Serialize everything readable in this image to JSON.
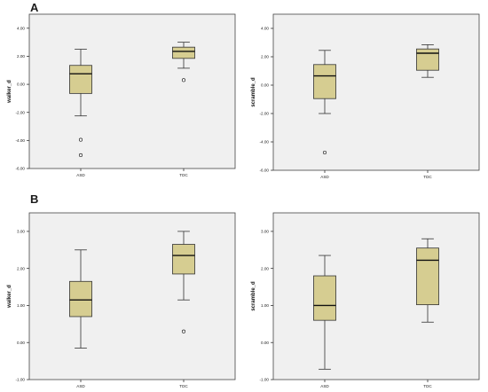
{
  "panel_labels": {
    "a": "A",
    "b": "B"
  },
  "chart_data": [
    {
      "type": "boxplot",
      "xlabel": "",
      "ylabel": "walker_d",
      "ylim": [
        -6,
        5
      ],
      "yticks": [
        -6,
        -4,
        -2,
        0,
        2,
        4
      ],
      "ytick_labels": [
        "-6.00",
        "-4.00",
        "-2.00",
        "0.00",
        "2.00",
        "4.00"
      ],
      "categories": [
        "ASD",
        "TDC"
      ],
      "boxes": [
        {
          "name": "ASD",
          "whisker_low": -2.25,
          "q1": -0.65,
          "median": 0.75,
          "q3": 1.35,
          "whisker_high": 2.5,
          "outliers": [
            -3.95,
            -5.05
          ]
        },
        {
          "name": "TDC",
          "whisker_low": 1.15,
          "q1": 1.85,
          "median": 2.35,
          "q3": 2.65,
          "whisker_high": 3.0,
          "outliers": [
            0.3
          ]
        }
      ],
      "grid": false,
      "background": "#f0f0f0",
      "box_color": "#d6cd91"
    },
    {
      "type": "boxplot",
      "xlabel": "",
      "ylabel": "scramble_d",
      "ylim": [
        -6,
        5
      ],
      "yticks": [
        -6,
        -4,
        -2,
        0,
        2,
        4
      ],
      "ytick_labels": [
        "-6.00",
        "-4.00",
        "-2.00",
        "0.00",
        "2.00",
        "4.00"
      ],
      "categories": [
        "ASD",
        "TDC"
      ],
      "boxes": [
        {
          "name": "ASD",
          "whisker_low": -2.0,
          "q1": -0.95,
          "median": 0.65,
          "q3": 1.45,
          "whisker_high": 2.45,
          "outliers": [
            -4.75
          ]
        },
        {
          "name": "TDC",
          "whisker_low": 0.55,
          "q1": 1.05,
          "median": 2.25,
          "q3": 2.55,
          "whisker_high": 2.85,
          "outliers": []
        }
      ],
      "grid": false,
      "background": "#f0f0f0",
      "box_color": "#d6cd91"
    },
    {
      "type": "boxplot",
      "xlabel": "",
      "ylabel": "walker_d",
      "ylim": [
        -1,
        3.5
      ],
      "yticks": [
        -1,
        0,
        1,
        2,
        3
      ],
      "ytick_labels": [
        "-1.00",
        "0.00",
        "1.00",
        "2.00",
        "3.00"
      ],
      "categories": [
        "ASD",
        "TDC"
      ],
      "boxes": [
        {
          "name": "ASD",
          "whisker_low": -0.15,
          "q1": 0.7,
          "median": 1.15,
          "q3": 1.65,
          "whisker_high": 2.5,
          "outliers": []
        },
        {
          "name": "TDC",
          "whisker_low": 1.15,
          "q1": 1.85,
          "median": 2.35,
          "q3": 2.65,
          "whisker_high": 3.0,
          "outliers": [
            0.3
          ]
        }
      ],
      "grid": false,
      "background": "#f0f0f0",
      "box_color": "#d6cd91"
    },
    {
      "type": "boxplot",
      "xlabel": "",
      "ylabel": "scramble_d",
      "ylim": [
        -1,
        3.5
      ],
      "yticks": [
        -1,
        0,
        1,
        2,
        3
      ],
      "ytick_labels": [
        "-1.00",
        "0.00",
        "1.00",
        "2.00",
        "3.00"
      ],
      "categories": [
        "ASD",
        "TDC"
      ],
      "boxes": [
        {
          "name": "ASD",
          "whisker_low": -0.72,
          "q1": 0.6,
          "median": 1.0,
          "q3": 1.8,
          "whisker_high": 2.35,
          "outliers": []
        },
        {
          "name": "TDC",
          "whisker_low": 0.55,
          "q1": 1.02,
          "median": 2.22,
          "q3": 2.55,
          "whisker_high": 2.8,
          "outliers": []
        }
      ],
      "grid": false,
      "background": "#f0f0f0",
      "box_color": "#d6cd91"
    }
  ]
}
